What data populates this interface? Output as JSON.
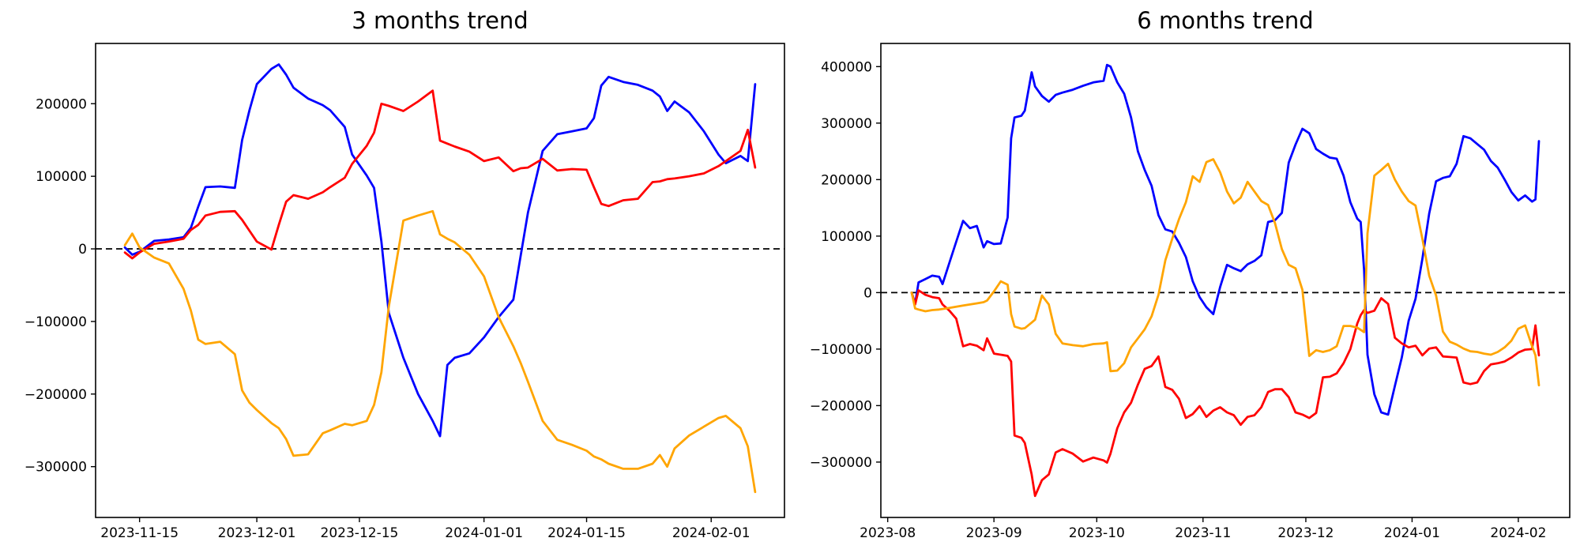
{
  "figure": {
    "background": "#ffffff",
    "text_color": "#000000",
    "zero_line_color": "#000000",
    "zero_line_style": "dashed"
  },
  "chart_data": [
    {
      "type": "line",
      "title": "3 months trend",
      "xlabel": "",
      "ylabel": "",
      "grid": false,
      "legend": "none",
      "ylim": [
        -370000,
        283000
      ],
      "xlim": [
        "2023-11-09",
        "2024-02-11"
      ],
      "y_ticks": [
        200000,
        100000,
        0,
        -100000,
        -200000,
        -300000
      ],
      "x_ticks": [
        {
          "label": "2023-11-15",
          "date": "2023-11-15"
        },
        {
          "label": "2023-12-01",
          "date": "2023-12-01"
        },
        {
          "label": "2023-12-15",
          "date": "2023-12-15"
        },
        {
          "label": "2024-01-01",
          "date": "2024-01-01"
        },
        {
          "label": "2024-01-15",
          "date": "2024-01-15"
        },
        {
          "label": "2024-02-01",
          "date": "2024-02-01"
        }
      ],
      "zero_line": 0,
      "x": [
        "2023-11-13",
        "2023-11-14",
        "2023-11-15",
        "2023-11-17",
        "2023-11-19",
        "2023-11-21",
        "2023-11-22",
        "2023-11-23",
        "2023-11-24",
        "2023-11-26",
        "2023-11-28",
        "2023-11-29",
        "2023-11-30",
        "2023-12-01",
        "2023-12-03",
        "2023-12-04",
        "2023-12-05",
        "2023-12-06",
        "2023-12-08",
        "2023-12-10",
        "2023-12-11",
        "2023-12-13",
        "2023-12-14",
        "2023-12-16",
        "2023-12-17",
        "2023-12-18",
        "2023-12-19",
        "2023-12-21",
        "2023-12-23",
        "2023-12-25",
        "2023-12-26",
        "2023-12-27",
        "2023-12-28",
        "2023-12-30",
        "2024-01-01",
        "2024-01-03",
        "2024-01-05",
        "2024-01-06",
        "2024-01-07",
        "2024-01-09",
        "2024-01-11",
        "2024-01-13",
        "2024-01-15",
        "2024-01-16",
        "2024-01-17",
        "2024-01-18",
        "2024-01-20",
        "2024-01-22",
        "2024-01-24",
        "2024-01-25",
        "2024-01-26",
        "2024-01-27",
        "2024-01-29",
        "2024-01-31",
        "2024-02-02",
        "2024-02-03",
        "2024-02-05",
        "2024-02-06",
        "2024-02-07"
      ],
      "series": [
        {
          "name": "blue",
          "color": "#0000ff",
          "values": [
            2000,
            -8000,
            -4000,
            11000,
            13000,
            16000,
            29000,
            58000,
            85000,
            86000,
            84000,
            150000,
            191000,
            227000,
            248000,
            254000,
            240000,
            222000,
            207000,
            198000,
            191000,
            168000,
            130000,
            101000,
            84000,
            10000,
            -88000,
            -150000,
            -200000,
            -237000,
            -258000,
            -160000,
            -150000,
            -144000,
            -122000,
            -94000,
            -70000,
            -10000,
            50000,
            135000,
            158000,
            162000,
            166000,
            180000,
            225000,
            237000,
            230000,
            226000,
            218000,
            210000,
            190000,
            203000,
            188000,
            162000,
            130000,
            118000,
            128000,
            121000,
            227000
          ]
        },
        {
          "name": "red",
          "color": "#ff0000",
          "values": [
            -5000,
            -13000,
            -5000,
            7000,
            10000,
            14000,
            26000,
            33000,
            46000,
            51000,
            52000,
            40000,
            25000,
            10000,
            -1000,
            33000,
            65000,
            74000,
            69000,
            78000,
            85000,
            98000,
            117000,
            142000,
            160000,
            200000,
            197000,
            190000,
            203000,
            218000,
            149000,
            145000,
            141000,
            134000,
            121000,
            126000,
            107000,
            111000,
            112000,
            124000,
            108000,
            110000,
            109000,
            85000,
            62000,
            59000,
            67000,
            69000,
            92000,
            93000,
            96000,
            97000,
            100000,
            104000,
            114000,
            121000,
            135000,
            164000,
            112000
          ]
        },
        {
          "name": "orange",
          "color": "#ffa500",
          "values": [
            5000,
            21000,
            2000,
            -12000,
            -20000,
            -55000,
            -85000,
            -125000,
            -131000,
            -128000,
            -145000,
            -195000,
            -212000,
            -222000,
            -240000,
            -247000,
            -262000,
            -285000,
            -283000,
            -254000,
            -250000,
            -241000,
            -243000,
            -237000,
            -215000,
            -170000,
            -80000,
            39000,
            46000,
            52000,
            20000,
            14000,
            9000,
            -8000,
            -38000,
            -94000,
            -134000,
            -157000,
            -183000,
            -237000,
            -263000,
            -270000,
            -278000,
            -286000,
            -290000,
            -296000,
            -303000,
            -303000,
            -296000,
            -284000,
            -300000,
            -275000,
            -257000,
            -245000,
            -233000,
            -230000,
            -247000,
            -272000,
            -335000
          ]
        }
      ]
    },
    {
      "type": "line",
      "title": "6 months trend",
      "xlabel": "",
      "ylabel": "",
      "grid": false,
      "legend": "none",
      "ylim": [
        -398000,
        441000
      ],
      "xlim": [
        "2023-07-30",
        "2024-02-16"
      ],
      "y_ticks": [
        400000,
        300000,
        200000,
        100000,
        0,
        -100000,
        -200000,
        -300000
      ],
      "x_ticks": [
        {
          "label": "2023-08",
          "date": "2023-08-01"
        },
        {
          "label": "2023-09",
          "date": "2023-09-01"
        },
        {
          "label": "2023-10",
          "date": "2023-10-01"
        },
        {
          "label": "2023-11",
          "date": "2023-11-01"
        },
        {
          "label": "2023-12",
          "date": "2023-12-01"
        },
        {
          "label": "2024-01",
          "date": "2024-01-01"
        },
        {
          "label": "2024-02",
          "date": "2024-02-01"
        }
      ],
      "zero_line": 0,
      "x": [
        "2023-08-08",
        "2023-08-09",
        "2023-08-10",
        "2023-08-12",
        "2023-08-14",
        "2023-08-16",
        "2023-08-17",
        "2023-08-19",
        "2023-08-21",
        "2023-08-23",
        "2023-08-25",
        "2023-08-27",
        "2023-08-29",
        "2023-08-30",
        "2023-09-01",
        "2023-09-03",
        "2023-09-05",
        "2023-09-06",
        "2023-09-07",
        "2023-09-09",
        "2023-09-10",
        "2023-09-12",
        "2023-09-13",
        "2023-09-15",
        "2023-09-17",
        "2023-09-19",
        "2023-09-21",
        "2023-09-24",
        "2023-09-27",
        "2023-09-30",
        "2023-10-03",
        "2023-10-04",
        "2023-10-05",
        "2023-10-07",
        "2023-10-09",
        "2023-10-11",
        "2023-10-13",
        "2023-10-15",
        "2023-10-17",
        "2023-10-19",
        "2023-10-21",
        "2023-10-23",
        "2023-10-25",
        "2023-10-27",
        "2023-10-29",
        "2023-10-31",
        "2023-11-02",
        "2023-11-04",
        "2023-11-06",
        "2023-11-08",
        "2023-11-10",
        "2023-11-12",
        "2023-11-14",
        "2023-11-16",
        "2023-11-18",
        "2023-11-20",
        "2023-11-22",
        "2023-11-24",
        "2023-11-26",
        "2023-11-28",
        "2023-11-30",
        "2023-12-02",
        "2023-12-04",
        "2023-12-06",
        "2023-12-08",
        "2023-12-10",
        "2023-12-12",
        "2023-12-14",
        "2023-12-16",
        "2023-12-17",
        "2023-12-18",
        "2023-12-19",
        "2023-12-21",
        "2023-12-23",
        "2023-12-25",
        "2023-12-27",
        "2023-12-29",
        "2023-12-31",
        "2024-01-02",
        "2024-01-04",
        "2024-01-06",
        "2024-01-08",
        "2024-01-10",
        "2024-01-12",
        "2024-01-14",
        "2024-01-16",
        "2024-01-18",
        "2024-01-20",
        "2024-01-22",
        "2024-01-24",
        "2024-01-26",
        "2024-01-28",
        "2024-01-30",
        "2024-02-01",
        "2024-02-03",
        "2024-02-05",
        "2024-02-06",
        "2024-02-07"
      ],
      "series": [
        {
          "name": "blue",
          "color": "#0000ff",
          "values": [
            0,
            -20000,
            18000,
            24000,
            30000,
            28000,
            15000,
            53000,
            90000,
            127000,
            114000,
            118000,
            80000,
            91000,
            86000,
            87000,
            133000,
            273000,
            310000,
            313000,
            322000,
            390000,
            365000,
            348000,
            338000,
            350000,
            354000,
            359000,
            366000,
            372000,
            375000,
            403000,
            400000,
            372000,
            352000,
            310000,
            250000,
            217000,
            189000,
            137000,
            112000,
            108000,
            88000,
            63000,
            20000,
            -8000,
            -26000,
            -38000,
            10000,
            49000,
            43000,
            38000,
            50000,
            56000,
            66000,
            125000,
            128000,
            141000,
            230000,
            262000,
            290000,
            282000,
            254000,
            246000,
            239000,
            237000,
            207000,
            160000,
            131000,
            125000,
            40000,
            -110000,
            -180000,
            -212000,
            -216000,
            -165000,
            -115000,
            -50000,
            -11000,
            60000,
            140000,
            197000,
            203000,
            206000,
            228000,
            277000,
            273000,
            263000,
            253000,
            233000,
            221000,
            200000,
            178000,
            163000,
            172000,
            161000,
            165000,
            268000
          ]
        },
        {
          "name": "red",
          "color": "#ff0000",
          "values": [
            0,
            -21000,
            4000,
            -4000,
            -8000,
            -10000,
            -21000,
            -32000,
            -46000,
            -95000,
            -91000,
            -94000,
            -102000,
            -81000,
            -108000,
            -110000,
            -112000,
            -122000,
            -253000,
            -257000,
            -266000,
            -322000,
            -360000,
            -332000,
            -322000,
            -283000,
            -277000,
            -285000,
            -299000,
            -292000,
            -297000,
            -301000,
            -285000,
            -240000,
            -212000,
            -195000,
            -163000,
            -135000,
            -130000,
            -113000,
            -167000,
            -172000,
            -188000,
            -222000,
            -215000,
            -201000,
            -220000,
            -209000,
            -203000,
            -212000,
            -217000,
            -234000,
            -220000,
            -217000,
            -203000,
            -176000,
            -171000,
            -171000,
            -185000,
            -212000,
            -216000,
            -222000,
            -213000,
            -150000,
            -149000,
            -143000,
            -125000,
            -100000,
            -55000,
            -40000,
            -31000,
            -36000,
            -32000,
            -10000,
            -20000,
            -80000,
            -90000,
            -97000,
            -94000,
            -111000,
            -99000,
            -97000,
            -113000,
            -114000,
            -115000,
            -159000,
            -162000,
            -159000,
            -139000,
            -127000,
            -125000,
            -122000,
            -115000,
            -106000,
            -101000,
            -100000,
            -58000,
            -111000
          ]
        },
        {
          "name": "orange",
          "color": "#ffa500",
          "values": [
            0,
            -28000,
            -30000,
            -33000,
            -31000,
            -30000,
            -29000,
            -27000,
            -25000,
            -23000,
            -21000,
            -19000,
            -17000,
            -14000,
            2000,
            20000,
            14000,
            -38000,
            -60000,
            -64000,
            -63000,
            -53000,
            -48000,
            -5000,
            -21000,
            -73000,
            -90000,
            -93000,
            -95000,
            -91000,
            -90000,
            -88000,
            -139000,
            -138000,
            -125000,
            -97000,
            -81000,
            -65000,
            -42000,
            -4000,
            57000,
            95000,
            130000,
            160000,
            206000,
            196000,
            231000,
            236000,
            213000,
            179000,
            158000,
            168000,
            196000,
            179000,
            162000,
            155000,
            123000,
            77000,
            49000,
            43000,
            5000,
            -112000,
            -102000,
            -105000,
            -102000,
            -95000,
            -59000,
            -59000,
            -62000,
            -66000,
            -70000,
            105000,
            207000,
            217000,
            228000,
            200000,
            179000,
            162000,
            154000,
            95000,
            30000,
            -5000,
            -69000,
            -87000,
            -92000,
            -99000,
            -104000,
            -105000,
            -108000,
            -110000,
            -105000,
            -97000,
            -85000,
            -64000,
            -58000,
            -95000,
            -111000,
            -164000
          ]
        }
      ]
    }
  ]
}
